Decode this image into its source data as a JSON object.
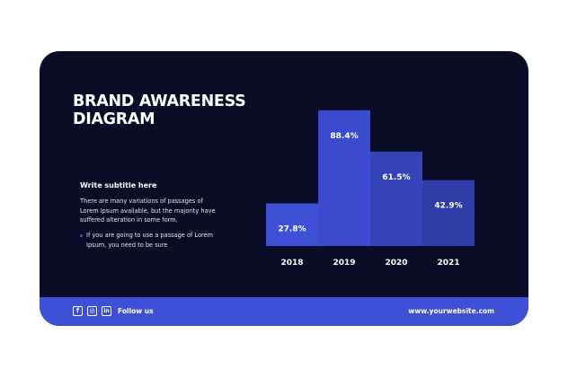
{
  "title_lines": [
    "BRAND AWARENESS",
    "DIAGRAM"
  ],
  "subtitle": "Write subtitle here",
  "paragraph_lines": [
    "There are many variations of passages of",
    "Lorem Ipsum available, but the majority have",
    "suffered alteration in some form."
  ],
  "bullet_lines": [
    "If you are going to use a passage of Lorem",
    "Ipsum, you need to be sure"
  ],
  "footer": {
    "follow_label": "Follow us",
    "website": "www.yourwebsite.com",
    "social_icons": [
      {
        "name": "facebook-icon",
        "glyph": "f"
      },
      {
        "name": "instagram-icon",
        "glyph": "◎"
      },
      {
        "name": "linkedin-icon",
        "glyph": "in"
      }
    ]
  },
  "colors": {
    "background": "#090b27",
    "footer": "#3e51d6",
    "bars": [
      "#3e51d6",
      "#3a4bd0",
      "#3443b7",
      "#2f3ca8"
    ]
  },
  "chart_data": {
    "type": "bar",
    "title": "",
    "xlabel": "",
    "ylabel": "",
    "categories": [
      "2018",
      "2019",
      "2020",
      "2021"
    ],
    "values": [
      27.8,
      88.4,
      61.5,
      42.9
    ],
    "value_labels": [
      "27.8%",
      "88.4%",
      "61.5%",
      "42.9%"
    ],
    "ylim": [
      0,
      100
    ],
    "grid": false,
    "legend": "none"
  }
}
